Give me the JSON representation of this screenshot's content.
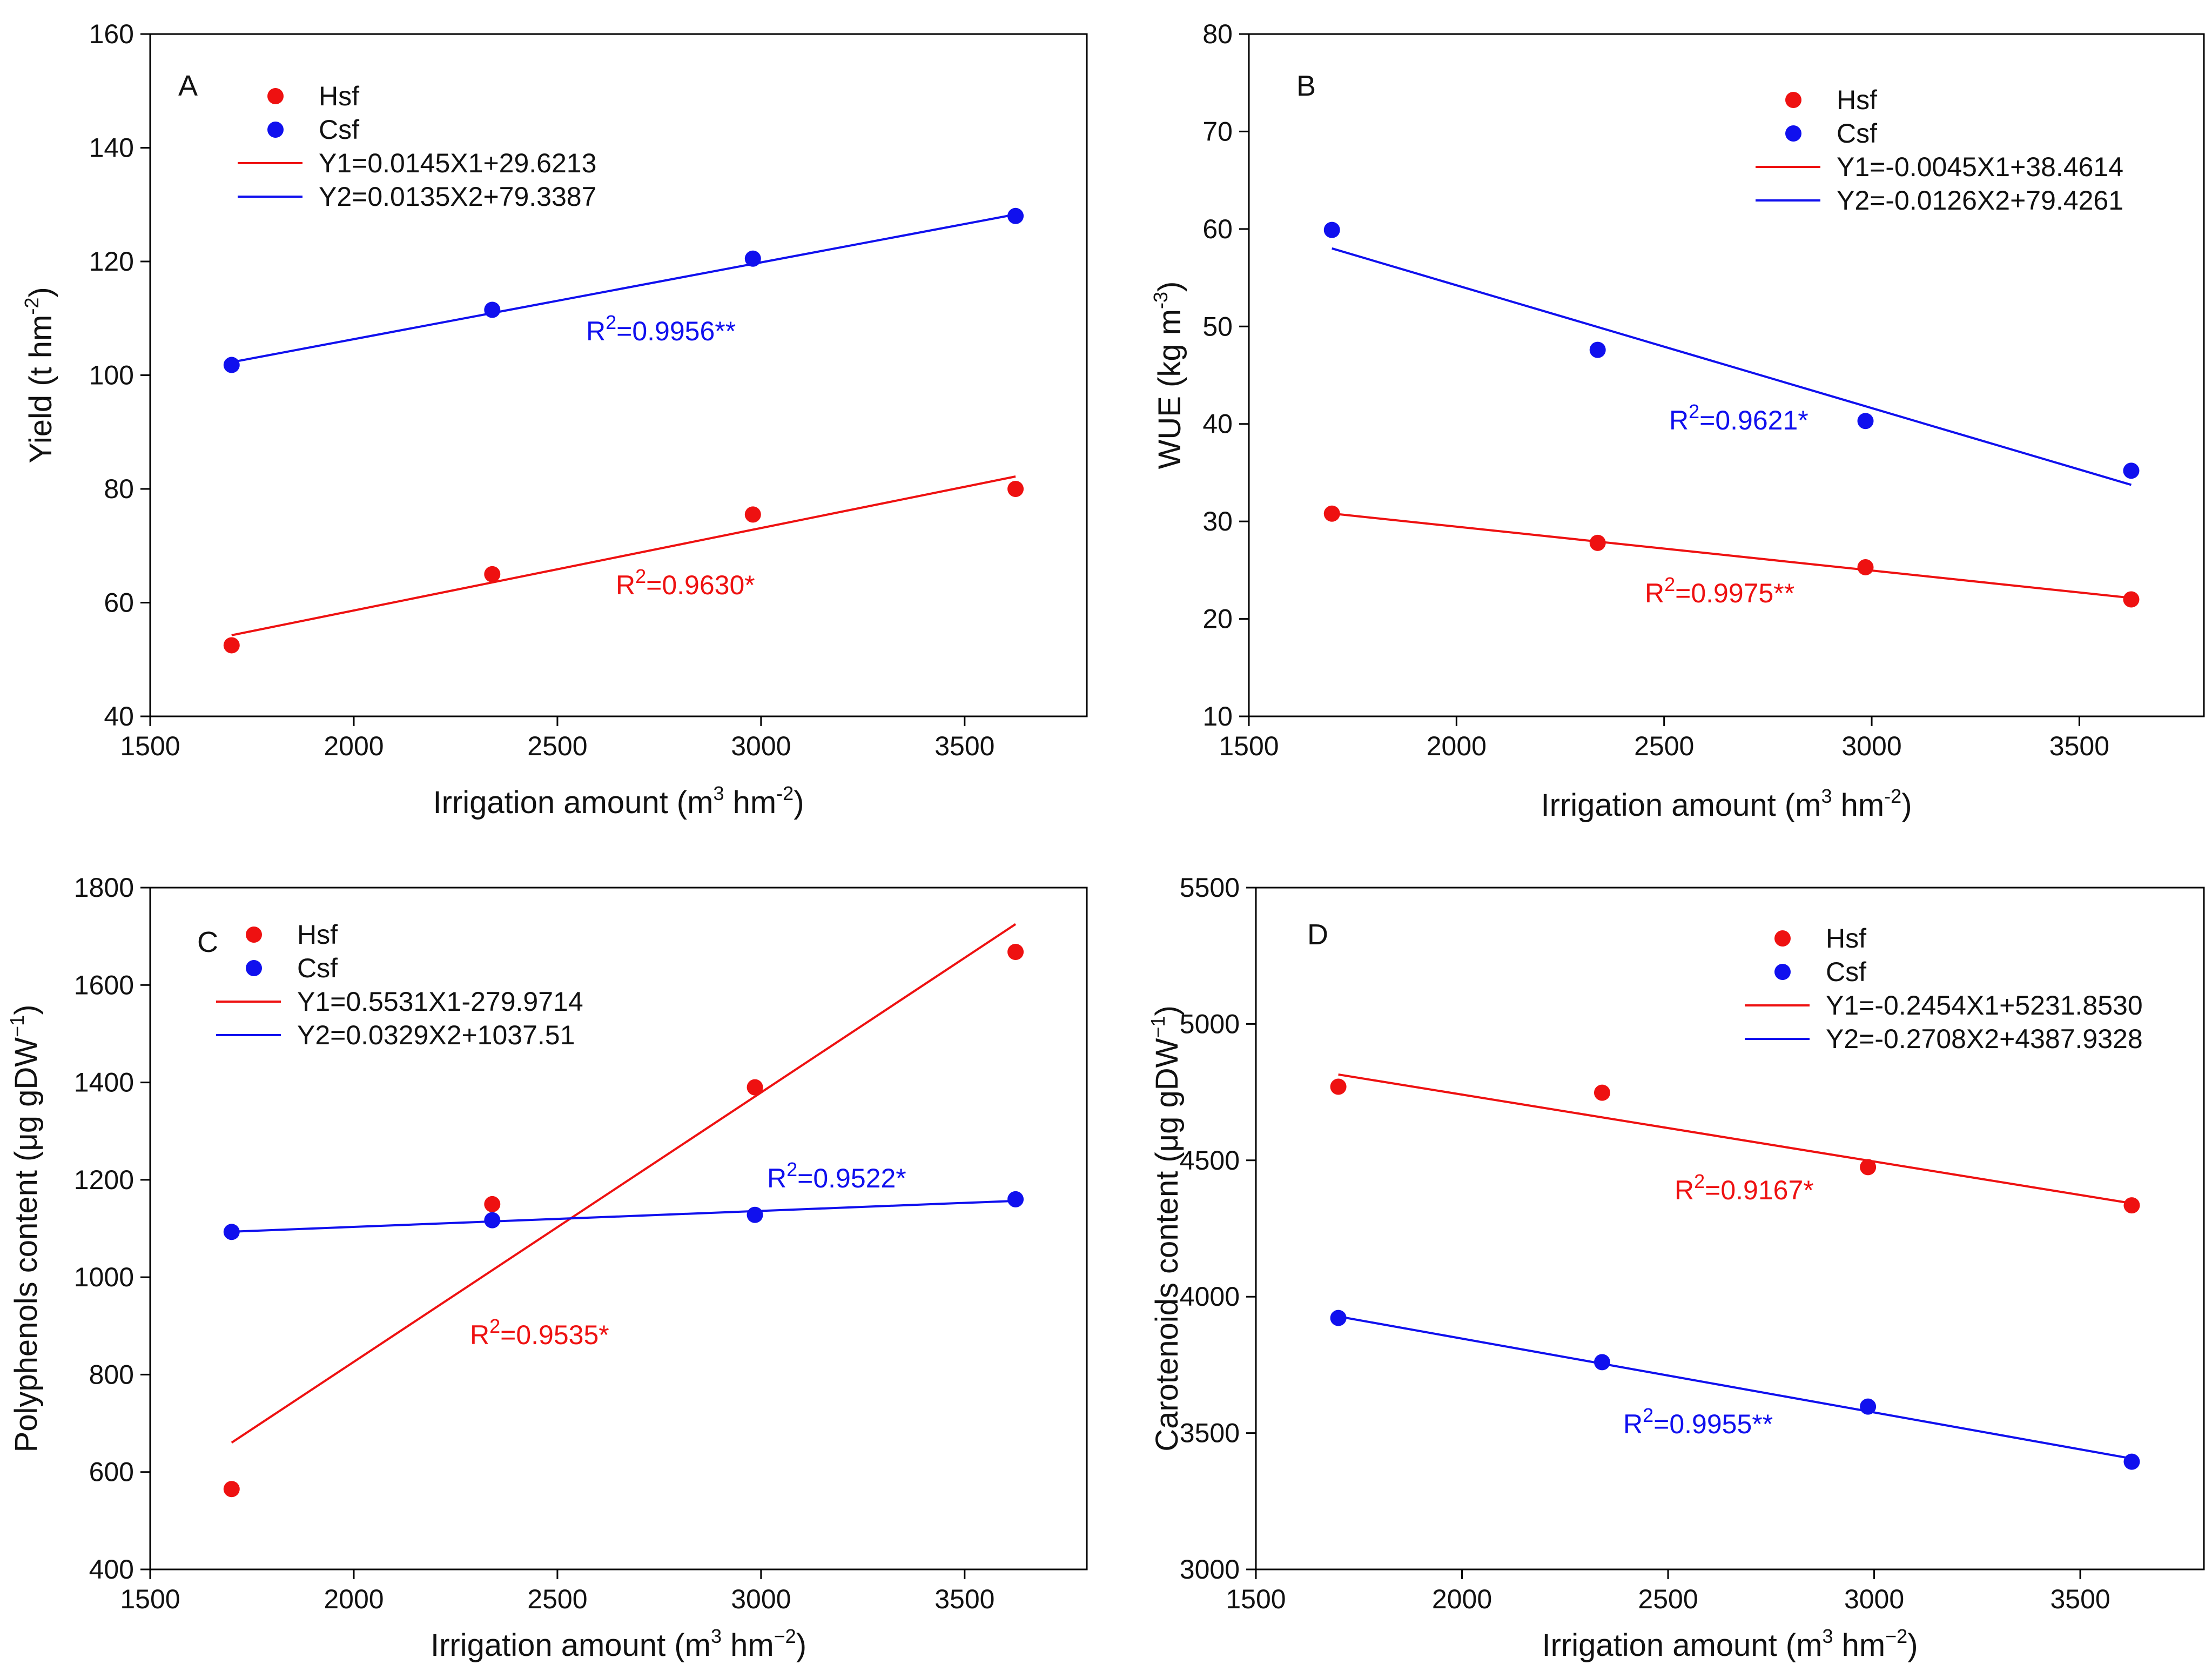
{
  "colors": {
    "hsf": "#ee1111",
    "csf": "#1010ee",
    "axis": "#000000"
  },
  "chart_data": [
    {
      "type": "scatter",
      "panel": "A",
      "xlabel": {
        "main": "Irrigation amount (m",
        "sup1": "3",
        "mid": " hm",
        "sup2": "-2",
        "end": ")"
      },
      "ylabel": {
        "main": "Yield (t hm",
        "sup": "-2",
        "end": ")"
      },
      "xlim": [
        1500,
        3800
      ],
      "ylim": [
        40,
        160
      ],
      "xticks": [
        1500,
        2000,
        2500,
        3000,
        3500
      ],
      "yticks": [
        40,
        60,
        80,
        100,
        120,
        140,
        160
      ],
      "legend": {
        "position": "top-left",
        "entries": [
          "Hsf",
          "Csf",
          "Y1=0.0145X1+29.6213",
          "Y2=0.0135X2+79.3387"
        ]
      },
      "series": [
        {
          "name": "Hsf",
          "color": "#ee1111",
          "x": [
            1700,
            2340,
            2980,
            3625
          ],
          "y": [
            52.5,
            65,
            75.5,
            80
          ],
          "fit": {
            "slope": 0.0145,
            "intercept": 29.6213,
            "r2_base": "R",
            "r2_sup": "2",
            "r2_value": "=0.9630*"
          }
        },
        {
          "name": "Csf",
          "color": "#1010ee",
          "x": [
            1700,
            2340,
            2980,
            3625
          ],
          "y": [
            101.8,
            111.5,
            120.5,
            128
          ],
          "fit": {
            "slope": 0.0135,
            "intercept": 79.3387,
            "r2_base": "R",
            "r2_sup": "2",
            "r2_value": "=0.9956**"
          }
        }
      ]
    },
    {
      "type": "scatter",
      "panel": "B",
      "xlabel": {
        "main": "Irrigation amount (m",
        "sup1": "3",
        "mid": " hm",
        "sup2": "-2",
        "end": ")"
      },
      "ylabel": {
        "main": "WUE (kg m",
        "sup": "-3",
        "end": ")"
      },
      "xlim": [
        1500,
        3800
      ],
      "ylim": [
        10,
        80
      ],
      "xticks": [
        1500,
        2000,
        2500,
        3000,
        3500
      ],
      "yticks": [
        10,
        20,
        30,
        40,
        50,
        60,
        70,
        80
      ],
      "legend": {
        "position": "top-right",
        "entries": [
          "Hsf",
          "Csf",
          "Y1=-0.0045X1+38.4614",
          "Y2=-0.0126X2+79.4261"
        ]
      },
      "series": [
        {
          "name": "Hsf",
          "color": "#ee1111",
          "x": [
            1700,
            2340,
            2985,
            3625
          ],
          "y": [
            30.8,
            27.8,
            25.3,
            22
          ],
          "fit": {
            "slope": -0.0045,
            "intercept": 38.4614,
            "r2_base": "R",
            "r2_sup": "2",
            "r2_value": "=0.9975**"
          }
        },
        {
          "name": "Csf",
          "color": "#1010ee",
          "x": [
            1700,
            2340,
            2985,
            3625
          ],
          "y": [
            59.9,
            47.6,
            40.3,
            35.2
          ],
          "fit": {
            "slope": -0.0126,
            "intercept": 79.4261,
            "r2_base": "R",
            "r2_sup": "2",
            "r2_value": "=0.9621*"
          }
        }
      ]
    },
    {
      "type": "scatter",
      "panel": "C",
      "xlabel": {
        "main": "Irrigation amount (m",
        "sup1": "3",
        "mid": " hm",
        "sup2": "−2",
        "end": ")"
      },
      "ylabel": {
        "main": "Polyphenols content (μg gDW",
        "sup": "−1",
        "end": ")"
      },
      "xlim": [
        1500,
        3800
      ],
      "ylim": [
        400,
        1800
      ],
      "xticks": [
        1500,
        2000,
        2500,
        3000,
        3500
      ],
      "yticks": [
        400,
        600,
        800,
        1000,
        1200,
        1400,
        1600,
        1800
      ],
      "legend": {
        "position": "top-left",
        "entries": [
          "Hsf",
          "Csf",
          "Y1=0.5531X1-279.9714",
          "Y2=0.0329X2+1037.51"
        ]
      },
      "series": [
        {
          "name": "Hsf",
          "color": "#ee1111",
          "x": [
            1700,
            2340,
            2985,
            3625
          ],
          "y": [
            565,
            1150,
            1390,
            1668
          ],
          "fit": {
            "slope": 0.5531,
            "intercept": -279.9714,
            "r2_base": "R",
            "r2_sup": "2",
            "r2_value": "=0.9535*"
          }
        },
        {
          "name": "Csf",
          "color": "#1010ee",
          "x": [
            1700,
            2340,
            2985,
            3625
          ],
          "y": [
            1093,
            1117,
            1128,
            1160
          ],
          "fit": {
            "slope": 0.0329,
            "intercept": 1037.51,
            "r2_base": "R",
            "r2_sup": "2",
            "r2_value": "=0.9522*"
          }
        }
      ]
    },
    {
      "type": "scatter",
      "panel": "D",
      "xlabel": {
        "main": "Irrigation amount (m",
        "sup1": "3",
        "mid": " hm",
        "sup2": "−2",
        "end": ")"
      },
      "ylabel": {
        "main": "Carotenoids content (μg gDW",
        "sup": "−1",
        "end": ")"
      },
      "xlim": [
        1500,
        3800
      ],
      "ylim": [
        3000,
        5500
      ],
      "xticks": [
        1500,
        2000,
        2500,
        3000,
        3500
      ],
      "yticks": [
        3000,
        3500,
        4000,
        4500,
        5000,
        5500
      ],
      "legend": {
        "position": "top-right",
        "entries": [
          "Hsf",
          "Csf",
          "Y1=-0.2454X1+5231.8530",
          "Y2=-0.2708X2+4387.9328"
        ]
      },
      "series": [
        {
          "name": "Hsf",
          "color": "#ee1111",
          "x": [
            1700,
            2340,
            2985,
            3625
          ],
          "y": [
            4770,
            4748,
            4475,
            4335
          ],
          "fit": {
            "slope": -0.2454,
            "intercept": 5231.853,
            "r2_base": "R",
            "r2_sup": "2",
            "r2_value": "=0.9167*"
          }
        },
        {
          "name": "Csf",
          "color": "#1010ee",
          "x": [
            1700,
            2340,
            2985,
            3625
          ],
          "y": [
            3922,
            3760,
            3597,
            3395
          ],
          "fit": {
            "slope": -0.2708,
            "intercept": 4387.9328,
            "r2_base": "R",
            "r2_sup": "2",
            "r2_value": "=0.9955**"
          }
        }
      ]
    }
  ]
}
